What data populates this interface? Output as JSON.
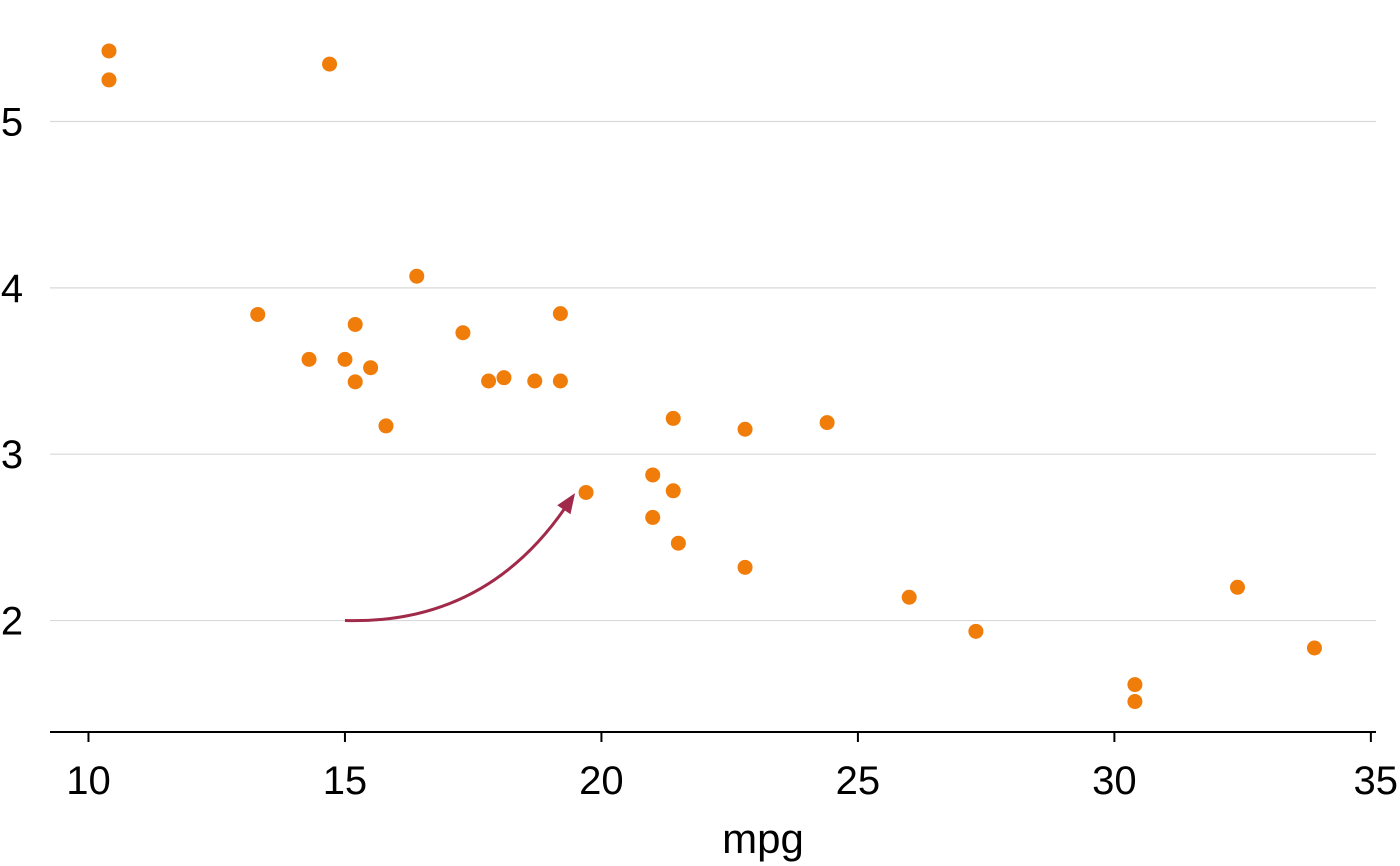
{
  "chart_data": {
    "type": "scatter",
    "title": "",
    "xlabel": "mpg",
    "ylabel": "",
    "xlim": [
      9.25,
      35.1
    ],
    "ylim": [
      1.33,
      5.55
    ],
    "x_ticks": [
      "10",
      "15",
      "20",
      "25",
      "30",
      "35"
    ],
    "x_tick_values": [
      10,
      15,
      20,
      25,
      30,
      35
    ],
    "y_ticks": [
      "2",
      "3",
      "4",
      "5"
    ],
    "y_tick_values": [
      2,
      3,
      4,
      5
    ],
    "grid": "horizontal",
    "point_color": "#f07c0a",
    "arrow_color": "#a12a4a",
    "points": [
      {
        "x": 21.0,
        "y": 2.62
      },
      {
        "x": 21.0,
        "y": 2.875
      },
      {
        "x": 22.8,
        "y": 2.32
      },
      {
        "x": 21.4,
        "y": 3.215
      },
      {
        "x": 18.7,
        "y": 3.44
      },
      {
        "x": 18.1,
        "y": 3.46
      },
      {
        "x": 14.3,
        "y": 3.57
      },
      {
        "x": 24.4,
        "y": 3.19
      },
      {
        "x": 22.8,
        "y": 3.15
      },
      {
        "x": 19.2,
        "y": 3.44
      },
      {
        "x": 17.8,
        "y": 3.44
      },
      {
        "x": 16.4,
        "y": 4.07
      },
      {
        "x": 17.3,
        "y": 3.73
      },
      {
        "x": 15.2,
        "y": 3.78
      },
      {
        "x": 10.4,
        "y": 5.25
      },
      {
        "x": 10.4,
        "y": 5.424
      },
      {
        "x": 14.7,
        "y": 5.345
      },
      {
        "x": 32.4,
        "y": 2.2
      },
      {
        "x": 30.4,
        "y": 1.615
      },
      {
        "x": 33.9,
        "y": 1.835
      },
      {
        "x": 21.5,
        "y": 2.465
      },
      {
        "x": 15.5,
        "y": 3.52
      },
      {
        "x": 15.2,
        "y": 3.435
      },
      {
        "x": 13.3,
        "y": 3.84
      },
      {
        "x": 19.2,
        "y": 3.845
      },
      {
        "x": 27.3,
        "y": 1.935
      },
      {
        "x": 26.0,
        "y": 2.14
      },
      {
        "x": 30.4,
        "y": 1.513
      },
      {
        "x": 15.8,
        "y": 3.17
      },
      {
        "x": 19.7,
        "y": 2.77
      },
      {
        "x": 15.0,
        "y": 3.57
      },
      {
        "x": 21.4,
        "y": 2.78
      }
    ],
    "annotation": {
      "type": "curved-arrow",
      "from": {
        "x": 15.0,
        "y": 2.0
      },
      "to": {
        "x": 19.45,
        "y": 2.75
      }
    }
  }
}
